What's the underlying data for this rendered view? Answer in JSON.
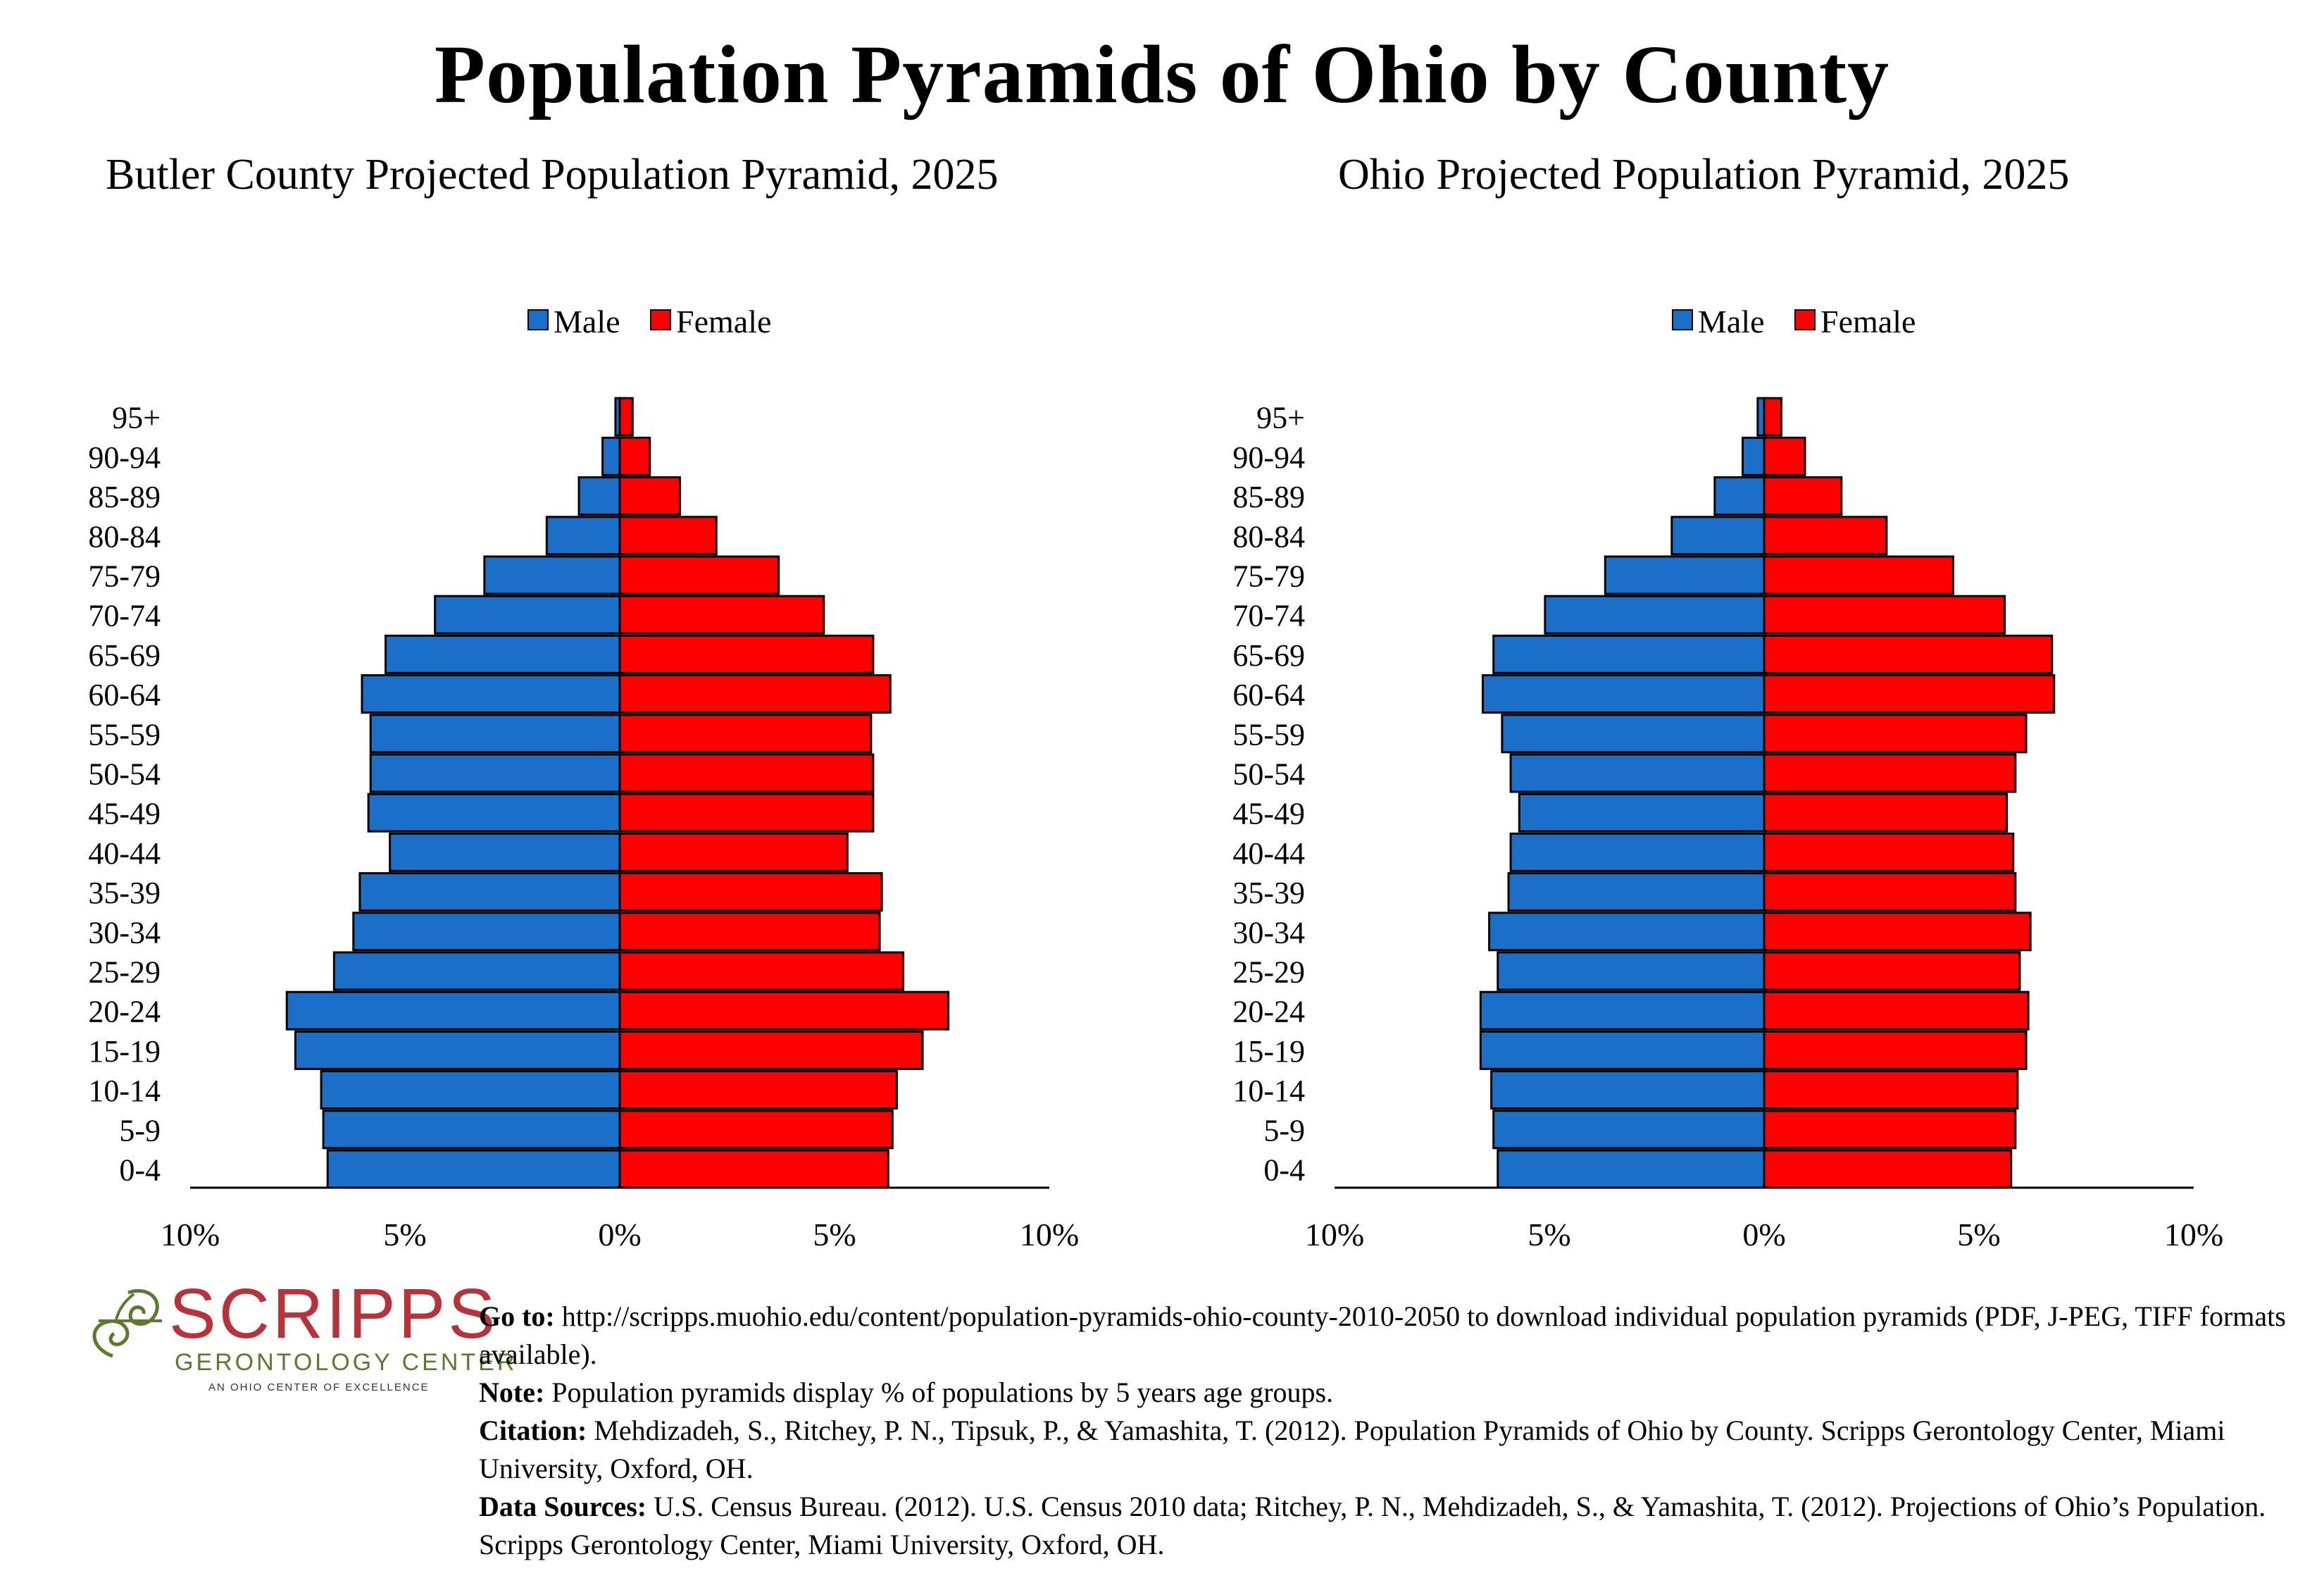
{
  "title": "Population Pyramids of Ohio by County",
  "charts": [
    {
      "title": "Butler County Projected Population Pyramid, 2025",
      "legend": [
        {
          "label": "Male",
          "color": "#1a6fc9"
        },
        {
          "label": "Female",
          "color": "#ff0000"
        }
      ],
      "x_ticks": [
        "10%",
        "5%",
        "0%",
        "5%",
        "10%"
      ]
    },
    {
      "title": "Ohio Projected Population Pyramid, 2025",
      "legend": [
        {
          "label": "Male",
          "color": "#1a6fc9"
        },
        {
          "label": "Female",
          "color": "#ff0000"
        }
      ],
      "x_ticks": [
        "10%",
        "5%",
        "0%",
        "5%",
        "10%"
      ]
    }
  ],
  "chart_data": [
    {
      "type": "bar",
      "orientation": "horizontal-pyramid",
      "title": "Butler County Projected Population Pyramid, 2025",
      "categories": [
        "0-4",
        "5-9",
        "10-14",
        "15-19",
        "20-24",
        "25-29",
        "30-34",
        "35-39",
        "40-44",
        "45-49",
        "50-54",
        "55-59",
        "60-64",
        "65-69",
        "70-74",
        "75-79",
        "80-84",
        "85-89",
        "90-94",
        "95+"
      ],
      "series": [
        {
          "name": "Male",
          "color": "#1a6fc9",
          "values": [
            6.8,
            6.9,
            6.95,
            7.55,
            7.75,
            6.65,
            6.2,
            6.05,
            5.35,
            5.85,
            5.8,
            5.8,
            6.0,
            5.45,
            4.3,
            3.15,
            1.7,
            0.95,
            0.4,
            0.1
          ]
        },
        {
          "name": "Female",
          "color": "#ff0000",
          "values": [
            6.25,
            6.35,
            6.45,
            7.05,
            7.65,
            6.6,
            6.05,
            6.1,
            5.3,
            5.9,
            5.9,
            5.85,
            6.3,
            5.9,
            4.75,
            3.7,
            2.25,
            1.4,
            0.7,
            0.3
          ]
        }
      ],
      "xlim": [
        -10,
        10
      ],
      "x_ticks": [
        "10%",
        "5%",
        "0%",
        "5%",
        "10%"
      ],
      "legend_position": "top-center",
      "grid": false
    },
    {
      "type": "bar",
      "orientation": "horizontal-pyramid",
      "title": "Ohio Projected Population Pyramid, 2025",
      "categories": [
        "0-4",
        "5-9",
        "10-14",
        "15-19",
        "20-24",
        "25-29",
        "30-34",
        "35-39",
        "40-44",
        "45-49",
        "50-54",
        "55-59",
        "60-64",
        "65-69",
        "70-74",
        "75-79",
        "80-84",
        "85-89",
        "90-94",
        "95+"
      ],
      "series": [
        {
          "name": "Male",
          "color": "#1a6fc9",
          "values": [
            6.2,
            6.3,
            6.35,
            6.6,
            6.6,
            6.2,
            6.4,
            5.95,
            5.9,
            5.7,
            5.9,
            6.1,
            6.55,
            6.3,
            5.1,
            3.7,
            2.15,
            1.15,
            0.5,
            0.15
          ]
        },
        {
          "name": "Female",
          "color": "#ff0000",
          "values": [
            5.75,
            5.85,
            5.9,
            6.1,
            6.15,
            5.95,
            6.2,
            5.85,
            5.8,
            5.65,
            5.85,
            6.1,
            6.75,
            6.7,
            5.6,
            4.4,
            2.85,
            1.8,
            0.95,
            0.4
          ]
        }
      ],
      "xlim": [
        -10,
        10
      ],
      "x_ticks": [
        "10%",
        "5%",
        "0%",
        "5%",
        "10%"
      ],
      "legend_position": "top-center",
      "grid": false
    }
  ],
  "logo": {
    "word": "SCRIPPS",
    "sub": "GERONTOLOGY CENTER",
    "tag": "AN OHIO CENTER OF EXCELLENCE",
    "colors": {
      "word": "#b8323a",
      "sub": "#5b7b2c"
    }
  },
  "notes": {
    "goto_label": "Go to:",
    "goto_text": "http://scripps.muohio.edu/content/population-pyramids-ohio-county-2010-2050 to download individual population pyramids (PDF, J-PEG, TIFF formats available).",
    "note_label": "Note:",
    "note_text": "Population pyramids display % of populations by 5 years age groups.",
    "citation_label": "Citation:",
    "citation_text": "Mehdizadeh, S., Ritchey, P. N., Tipsuk, P., & Yamashita, T. (2012). Population Pyramids of Ohio by County. Scripps Gerontology Center, Miami University, Oxford, OH.",
    "sources_label": "Data Sources:",
    "sources_text": "U.S. Census Bureau. (2012). U.S. Census 2010 data; Ritchey, P. N., Mehdizadeh, S., & Yamashita, T. (2012). Projections of Ohio’s Population. Scripps Gerontology Center, Miami University, Oxford, OH."
  }
}
